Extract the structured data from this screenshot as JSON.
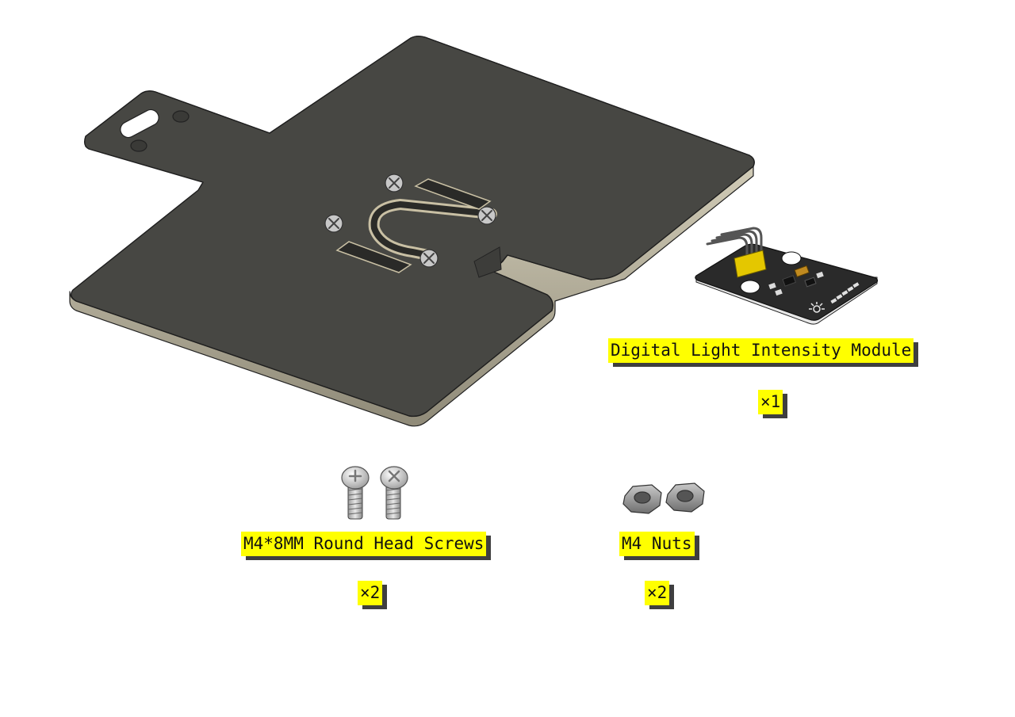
{
  "parts": [
    {
      "id": "acrylic-plate",
      "color": "#474743",
      "edge_color": "#c9c0a4"
    },
    {
      "id": "light-module",
      "label": "Digital Light Intensity Module",
      "qty": "×1",
      "color": "#2a2a2a",
      "pin_color": "#e4c700"
    },
    {
      "id": "screws",
      "label": "M4*8MM Round Head Screws",
      "qty": "×2",
      "color": "#bfbfbf"
    },
    {
      "id": "nuts",
      "label": "M4 Nuts",
      "qty": "×2",
      "color": "#8f8f8f"
    }
  ],
  "label_bg": "#ffff00",
  "label_shadow": "#3f3f3f"
}
